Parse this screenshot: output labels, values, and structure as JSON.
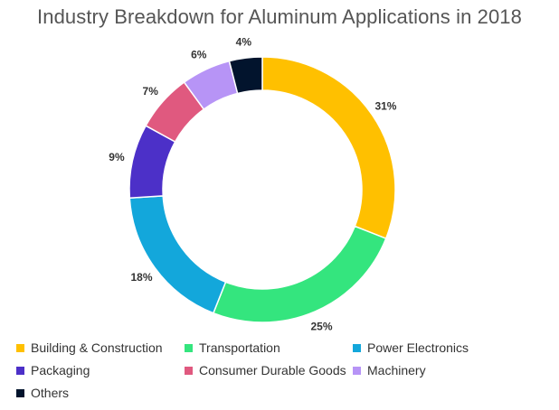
{
  "chart_data": {
    "type": "pie",
    "variant": "donut",
    "title": "Industry Breakdown for Aluminum Applications in 2018",
    "categories": [
      "Building & Construction",
      "Transportation",
      "Power Electronics",
      "Packaging",
      "Consumer Durable Goods",
      "Machinery",
      "Others"
    ],
    "values": [
      31,
      25,
      18,
      9,
      7,
      6,
      4
    ],
    "unit": "%",
    "labels": [
      "31%",
      "25%",
      "18%",
      "9%",
      "7%",
      "6%",
      "4%"
    ],
    "colors": [
      "#ffc000",
      "#34e57e",
      "#13a7db",
      "#4c30c8",
      "#e0597f",
      "#b794f6",
      "#02142d"
    ],
    "legend_position": "bottom",
    "start_angle_deg": 0,
    "direction": "clockwise"
  }
}
